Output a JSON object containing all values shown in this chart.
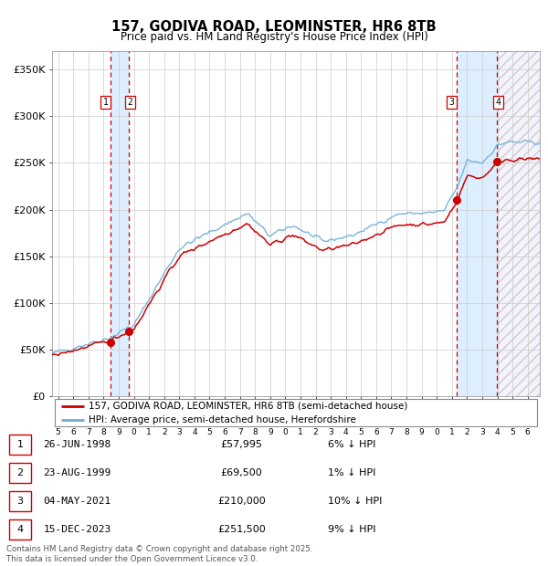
{
  "title_line1": "157, GODIVA ROAD, LEOMINSTER, HR6 8TB",
  "title_line2": "Price paid vs. HM Land Registry's House Price Index (HPI)",
  "ylabel_ticks": [
    "£0",
    "£50K",
    "£100K",
    "£150K",
    "£200K",
    "£250K",
    "£300K",
    "£350K"
  ],
  "ytick_values": [
    0,
    50000,
    100000,
    150000,
    200000,
    250000,
    300000,
    350000
  ],
  "ylim": [
    0,
    370000
  ],
  "xlim_start": 1994.6,
  "xlim_end": 2026.8,
  "x_ticks": [
    1995,
    1996,
    1997,
    1998,
    1999,
    2000,
    2001,
    2002,
    2003,
    2004,
    2005,
    2006,
    2007,
    2008,
    2009,
    2010,
    2011,
    2012,
    2013,
    2014,
    2015,
    2016,
    2017,
    2018,
    2019,
    2020,
    2021,
    2022,
    2023,
    2024,
    2025,
    2026
  ],
  "sale_dates_num": [
    1998.483,
    1999.644,
    2021.337,
    2023.956
  ],
  "sale_prices": [
    57995,
    69500,
    210000,
    251500
  ],
  "sale_labels": [
    "1",
    "2",
    "3",
    "4"
  ],
  "hpi_color": "#6baed6",
  "price_color": "#cc0000",
  "dashed_line_color": "#cc0000",
  "shade_color": "#ddeeff",
  "legend_line1": "157, GODIVA ROAD, LEOMINSTER, HR6 8TB (semi-detached house)",
  "legend_line2": "HPI: Average price, semi-detached house, Herefordshire",
  "table_rows": [
    [
      "1",
      "26-JUN-1998",
      "£57,995",
      "6% ↓ HPI"
    ],
    [
      "2",
      "23-AUG-1999",
      "£69,500",
      "1% ↓ HPI"
    ],
    [
      "3",
      "04-MAY-2021",
      "£210,000",
      "10% ↓ HPI"
    ],
    [
      "4",
      "15-DEC-2023",
      "£251,500",
      "9% ↓ HPI"
    ]
  ],
  "footer_text": "Contains HM Land Registry data © Crown copyright and database right 2025.\nThis data is licensed under the Open Government Licence v3.0.",
  "background_color": "#ffffff",
  "grid_color": "#cccccc"
}
